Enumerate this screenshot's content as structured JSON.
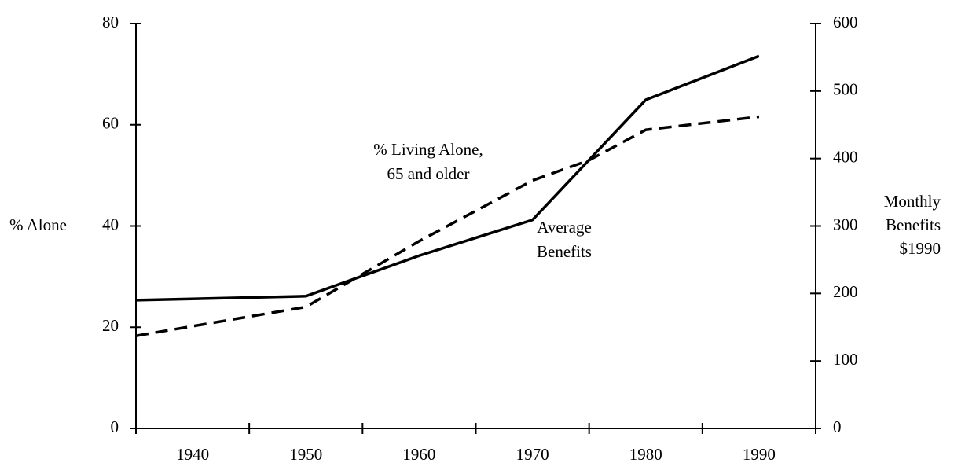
{
  "chart_data": {
    "type": "line",
    "y_label": "% Alone",
    "y2_label": [
      "Monthly",
      "Benefits",
      "$1990"
    ],
    "xlim": [
      1935,
      1995
    ],
    "xticks": [
      1940,
      1950,
      1960,
      1970,
      1980,
      1990
    ],
    "xtick_marks": [
      1935,
      1945,
      1955,
      1965,
      1975,
      1985,
      1995
    ],
    "ylim": [
      0,
      80
    ],
    "yticks": [
      0,
      20,
      40,
      60,
      80
    ],
    "y2lim": [
      0,
      600
    ],
    "y2ticks": [
      0,
      100,
      200,
      300,
      400,
      500,
      600
    ],
    "series": [
      {
        "name": "Average Benefits",
        "label_lines": [
          "Average",
          "Benefits"
        ],
        "color": "#000",
        "dash": false,
        "axis": "y2",
        "x": [
          1935,
          1950,
          1960,
          1970,
          1980,
          1990
        ],
        "values": [
          190,
          196,
          256,
          309,
          487,
          552
        ]
      },
      {
        "name": "% Living Alone, 65 and older",
        "label_lines": [
          "% Living Alone,",
          "65 and older"
        ],
        "color": "#000",
        "dash": true,
        "axis": "y",
        "x": [
          1935,
          1950,
          1960,
          1970,
          1975,
          1980,
          1985,
          1990
        ],
        "values": [
          18.3,
          24,
          37,
          49,
          53,
          59,
          60.3,
          61.6
        ]
      }
    ]
  }
}
